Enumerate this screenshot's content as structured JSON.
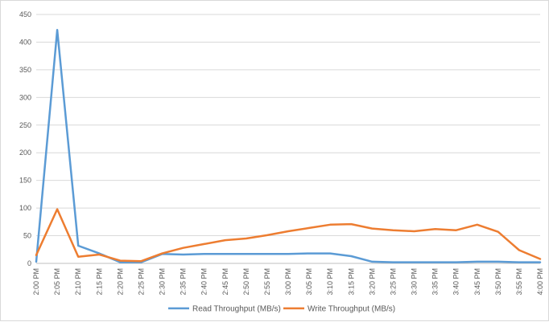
{
  "chart_data": {
    "type": "line",
    "title": "",
    "xlabel": "",
    "ylabel": "",
    "ylim": [
      0,
      450
    ],
    "yticks": [
      0,
      50,
      100,
      150,
      200,
      250,
      300,
      350,
      400,
      450
    ],
    "grid": "horizontal",
    "legend": "bottom",
    "categories": [
      "2:00 PM",
      "2:05 PM",
      "2:10 PM",
      "2:15 PM",
      "2:20 PM",
      "2:25 PM",
      "2:30 PM",
      "2:35 PM",
      "2:40 PM",
      "2:45 PM",
      "2:50 PM",
      "2:55 PM",
      "3:00 PM",
      "3:05 PM",
      "3:10 PM",
      "3:15 PM",
      "3:20 PM",
      "3:25 PM",
      "3:30 PM",
      "3:35 PM",
      "3:40 PM",
      "3:45 PM",
      "3:50 PM",
      "3:55 PM",
      "4:00 PM"
    ],
    "series": [
      {
        "name": "Read Throughput (MB/s)",
        "color": "#5b9bd5",
        "values": [
          3,
          422,
          32,
          18,
          2,
          2,
          17,
          16,
          17,
          17,
          17,
          17,
          17,
          18,
          18,
          13,
          3,
          2,
          2,
          2,
          2,
          3,
          3,
          2,
          2
        ]
      },
      {
        "name": "Write Throughput (MB/s)",
        "color": "#ed7d31",
        "values": [
          15,
          98,
          12,
          16,
          5,
          4,
          18,
          28,
          35,
          42,
          45,
          51,
          58,
          64,
          70,
          71,
          63,
          60,
          58,
          62,
          60,
          70,
          57,
          24,
          8
        ]
      }
    ]
  }
}
